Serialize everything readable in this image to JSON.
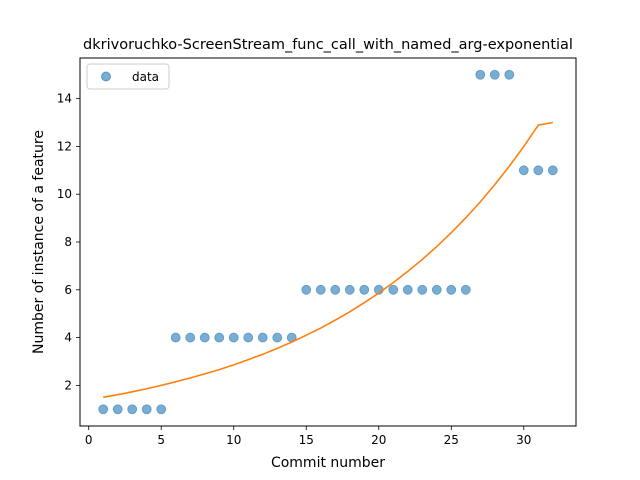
{
  "chart_data": {
    "type": "scatter",
    "title": "dkrivoruchko-ScreenStream_func_call_with_named_arg-exponential",
    "xlabel": "Commit number",
    "ylabel": "Number of instance of a feature",
    "xlim": [
      -0.6,
      33.6
    ],
    "ylim": [
      0.3,
      15.7
    ],
    "xticks": [
      0,
      5,
      10,
      15,
      20,
      25,
      30
    ],
    "yticks": [
      2,
      4,
      6,
      8,
      10,
      12,
      14
    ],
    "grid": false,
    "legend_position": "top-left",
    "colors": {
      "points": "#1f77b4",
      "fit": "#ff7f0e"
    },
    "series": [
      {
        "name": "data",
        "kind": "scatter",
        "x": [
          1,
          2,
          3,
          4,
          5,
          6,
          7,
          8,
          9,
          10,
          11,
          12,
          13,
          14,
          15,
          16,
          17,
          18,
          19,
          20,
          21,
          22,
          23,
          24,
          25,
          26,
          27,
          28,
          29,
          30,
          31,
          32
        ],
        "y": [
          1,
          1,
          1,
          1,
          1,
          4,
          4,
          4,
          4,
          4,
          4,
          4,
          4,
          4,
          6,
          6,
          6,
          6,
          6,
          6,
          6,
          6,
          6,
          6,
          6,
          6,
          15,
          15,
          15,
          11,
          11,
          11
        ]
      },
      {
        "kind": "line",
        "x": [
          1,
          2,
          3,
          4,
          5,
          6,
          7,
          8,
          9,
          10,
          11,
          12,
          13,
          14,
          15,
          16,
          17,
          18,
          19,
          20,
          21,
          22,
          23,
          24,
          25,
          26,
          27,
          28,
          29,
          30,
          31,
          32
        ],
        "y": [
          1.5,
          1.61,
          1.73,
          1.86,
          2.0,
          2.15,
          2.31,
          2.48,
          2.66,
          2.86,
          3.08,
          3.3,
          3.55,
          3.81,
          4.1,
          4.4,
          4.73,
          5.08,
          5.46,
          5.86,
          6.3,
          6.77,
          7.27,
          7.81,
          8.39,
          9.01,
          9.68,
          10.4,
          11.17,
          12.0,
          12.89,
          13.0
        ]
      }
    ]
  }
}
